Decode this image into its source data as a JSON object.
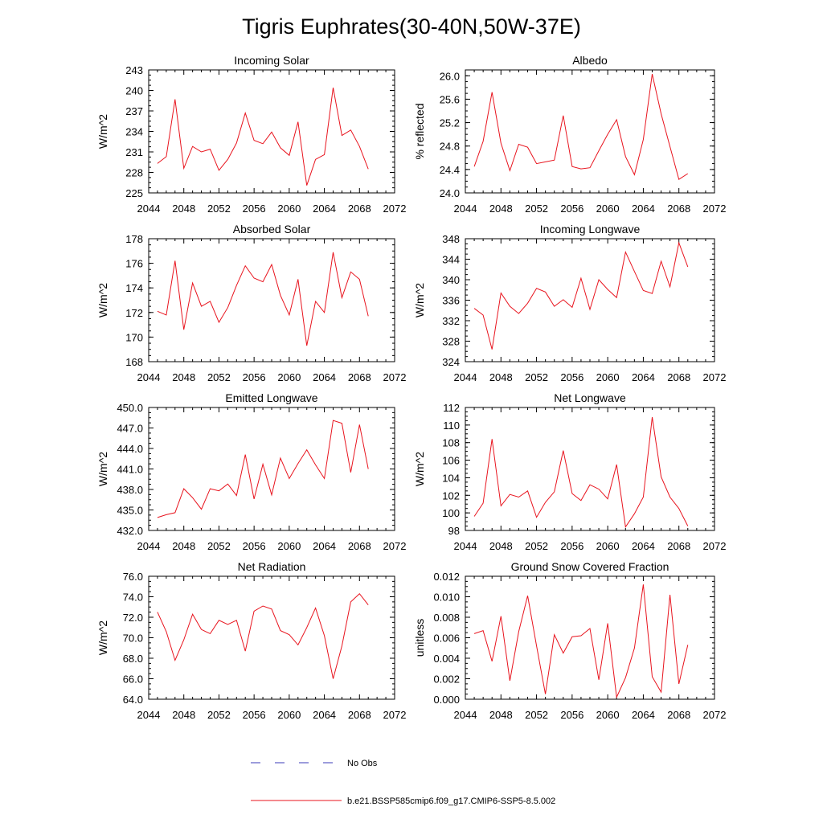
{
  "figure": {
    "title": "Tigris Euphrates(30-40N,50W-37E)",
    "legend": [
      {
        "label": "No Obs",
        "color": "#3b3bb8",
        "dash": true
      },
      {
        "label": "b.e21.BSSP585cmip6.f09_g17.CMIP6-SSP5-8.5.002",
        "color": "#e8141e",
        "dash": false
      }
    ]
  },
  "chart_data": [
    {
      "type": "line",
      "title": "Incoming Solar",
      "ylabel": "W/m^2",
      "xlim": [
        2044,
        2072
      ],
      "xticks": [
        "2044",
        "2048",
        "2052",
        "2056",
        "2060",
        "2064",
        "2068",
        "2072"
      ],
      "ylim": [
        225,
        243
      ],
      "yticks": [
        "225",
        "228",
        "231",
        "234",
        "237",
        "240",
        "243"
      ],
      "series": [
        {
          "color": "#e8141e",
          "x": [
            2045,
            2046,
            2047,
            2048,
            2049,
            2050,
            2051,
            2052,
            2053,
            2054,
            2055,
            2056,
            2057,
            2058,
            2059,
            2060,
            2061,
            2062,
            2063,
            2064,
            2065,
            2066,
            2067,
            2068,
            2069
          ],
          "values": [
            229.3,
            230.3,
            238.7,
            228.6,
            231.8,
            231.0,
            231.4,
            228.3,
            229.9,
            232.3,
            236.7,
            232.7,
            232.2,
            233.9,
            231.6,
            230.5,
            235.4,
            226.1,
            229.9,
            230.6,
            240.4,
            233.4,
            234.2,
            231.8,
            228.5
          ]
        }
      ]
    },
    {
      "type": "line",
      "title": "Albedo",
      "ylabel": "% reflected",
      "xlim": [
        2044,
        2072
      ],
      "xticks": [
        "2044",
        "2048",
        "2052",
        "2056",
        "2060",
        "2064",
        "2068",
        "2072"
      ],
      "ylim": [
        24.0,
        26.1
      ],
      "yticks": [
        "24.0",
        "24.4",
        "24.8",
        "25.2",
        "25.6",
        "26.0"
      ],
      "series": [
        {
          "color": "#e8141e",
          "x": [
            2045,
            2046,
            2047,
            2048,
            2049,
            2050,
            2051,
            2052,
            2053,
            2054,
            2055,
            2056,
            2057,
            2058,
            2059,
            2060,
            2061,
            2062,
            2063,
            2064,
            2065,
            2066,
            2067,
            2068,
            2069
          ],
          "values": [
            24.45,
            24.88,
            25.72,
            24.85,
            24.38,
            24.83,
            24.78,
            24.5,
            24.53,
            24.56,
            25.32,
            24.45,
            24.41,
            24.43,
            24.72,
            25.0,
            25.25,
            24.62,
            24.31,
            24.91,
            26.03,
            25.35,
            24.79,
            24.23,
            24.33
          ]
        }
      ]
    },
    {
      "type": "line",
      "title": "Absorbed Solar",
      "ylabel": "W/m^2",
      "xlim": [
        2044,
        2072
      ],
      "xticks": [
        "2044",
        "2048",
        "2052",
        "2056",
        "2060",
        "2064",
        "2068",
        "2072"
      ],
      "ylim": [
        168,
        178
      ],
      "yticks": [
        "168",
        "170",
        "172",
        "174",
        "176",
        "178"
      ],
      "series": [
        {
          "color": "#e8141e",
          "x": [
            2045,
            2046,
            2047,
            2048,
            2049,
            2050,
            2051,
            2052,
            2053,
            2054,
            2055,
            2056,
            2057,
            2058,
            2059,
            2060,
            2061,
            2062,
            2063,
            2064,
            2065,
            2066,
            2067,
            2068,
            2069
          ],
          "values": [
            172.1,
            171.8,
            176.2,
            170.6,
            174.4,
            172.5,
            172.9,
            171.2,
            172.4,
            174.2,
            175.8,
            174.8,
            174.5,
            175.9,
            173.4,
            171.8,
            174.7,
            169.3,
            172.9,
            172.0,
            176.9,
            173.2,
            175.3,
            174.7,
            171.7
          ]
        }
      ]
    },
    {
      "type": "line",
      "title": "Incoming Longwave",
      "ylabel": "W/m^2",
      "xlim": [
        2044,
        2072
      ],
      "xticks": [
        "2044",
        "2048",
        "2052",
        "2056",
        "2060",
        "2064",
        "2068",
        "2072"
      ],
      "ylim": [
        324,
        348
      ],
      "yticks": [
        "324",
        "328",
        "332",
        "336",
        "340",
        "344",
        "348"
      ],
      "series": [
        {
          "color": "#e8141e",
          "x": [
            2045,
            2046,
            2047,
            2048,
            2049,
            2050,
            2051,
            2052,
            2053,
            2054,
            2055,
            2056,
            2057,
            2058,
            2059,
            2060,
            2061,
            2062,
            2063,
            2064,
            2065,
            2066,
            2067,
            2068,
            2069
          ],
          "values": [
            334.4,
            333.1,
            326.4,
            337.4,
            334.8,
            333.4,
            335.4,
            338.3,
            337.6,
            334.8,
            336.1,
            334.6,
            340.3,
            334.2,
            340.0,
            338.1,
            336.5,
            345.4,
            341.6,
            337.9,
            337.3,
            343.6,
            338.6,
            347.2,
            342.5
          ]
        }
      ]
    },
    {
      "type": "line",
      "title": "Emitted Longwave",
      "ylabel": "W/m^2",
      "xlim": [
        2044,
        2072
      ],
      "xticks": [
        "2044",
        "2048",
        "2052",
        "2056",
        "2060",
        "2064",
        "2068",
        "2072"
      ],
      "ylim": [
        432.0,
        450.0
      ],
      "yticks": [
        "432.0",
        "435.0",
        "438.0",
        "441.0",
        "444.0",
        "447.0",
        "450.0"
      ],
      "series": [
        {
          "color": "#e8141e",
          "x": [
            2045,
            2046,
            2047,
            2048,
            2049,
            2050,
            2051,
            2052,
            2053,
            2054,
            2055,
            2056,
            2057,
            2058,
            2059,
            2060,
            2061,
            2062,
            2063,
            2064,
            2065,
            2066,
            2067,
            2068,
            2069
          ],
          "values": [
            433.9,
            434.3,
            434.6,
            438.1,
            436.8,
            435.1,
            438.1,
            437.8,
            438.8,
            437.1,
            443.1,
            436.6,
            441.7,
            437.2,
            442.6,
            439.6,
            441.8,
            443.8,
            441.6,
            439.6,
            448.1,
            447.7,
            440.5,
            447.5,
            441.0
          ]
        }
      ]
    },
    {
      "type": "line",
      "title": "Net Longwave",
      "ylabel": "W/m^2",
      "xlim": [
        2044,
        2072
      ],
      "xticks": [
        "2044",
        "2048",
        "2052",
        "2056",
        "2060",
        "2064",
        "2068",
        "2072"
      ],
      "ylim": [
        98,
        112
      ],
      "yticks": [
        "98",
        "100",
        "102",
        "104",
        "106",
        "108",
        "110",
        "112"
      ],
      "series": [
        {
          "color": "#e8141e",
          "x": [
            2045,
            2046,
            2047,
            2048,
            2049,
            2050,
            2051,
            2052,
            2053,
            2054,
            2055,
            2056,
            2057,
            2058,
            2059,
            2060,
            2061,
            2062,
            2063,
            2064,
            2065,
            2066,
            2067,
            2068,
            2069
          ],
          "values": [
            99.6,
            101.1,
            108.4,
            100.8,
            102.1,
            101.8,
            102.5,
            99.5,
            101.2,
            102.4,
            107.1,
            102.2,
            101.4,
            103.2,
            102.7,
            101.6,
            105.5,
            98.4,
            99.9,
            101.8,
            110.9,
            104.1,
            101.8,
            100.5,
            98.5
          ]
        }
      ]
    },
    {
      "type": "line",
      "title": "Net Radiation",
      "ylabel": "W/m^2",
      "xlim": [
        2044,
        2072
      ],
      "xticks": [
        "2044",
        "2048",
        "2052",
        "2056",
        "2060",
        "2064",
        "2068",
        "2072"
      ],
      "ylim": [
        64.0,
        76.0
      ],
      "yticks": [
        "64.0",
        "66.0",
        "68.0",
        "70.0",
        "72.0",
        "74.0",
        "76.0"
      ],
      "series": [
        {
          "color": "#e8141e",
          "x": [
            2045,
            2046,
            2047,
            2048,
            2049,
            2050,
            2051,
            2052,
            2053,
            2054,
            2055,
            2056,
            2057,
            2058,
            2059,
            2060,
            2061,
            2062,
            2063,
            2064,
            2065,
            2066,
            2067,
            2068,
            2069
          ],
          "values": [
            72.5,
            70.6,
            67.8,
            69.8,
            72.3,
            70.8,
            70.4,
            71.7,
            71.3,
            71.7,
            68.7,
            72.6,
            73.1,
            72.8,
            70.7,
            70.3,
            69.3,
            71.0,
            72.9,
            70.2,
            66.0,
            69.2,
            73.5,
            74.3,
            73.2
          ]
        }
      ]
    },
    {
      "type": "line",
      "title": "Ground Snow Covered Fraction",
      "ylabel": "unitless",
      "xlim": [
        2044,
        2072
      ],
      "xticks": [
        "2044",
        "2048",
        "2052",
        "2056",
        "2060",
        "2064",
        "2068",
        "2072"
      ],
      "ylim": [
        0.0,
        0.012
      ],
      "yticks": [
        "0.000",
        "0.002",
        "0.004",
        "0.006",
        "0.008",
        "0.010",
        "0.012"
      ],
      "series": [
        {
          "color": "#e8141e",
          "x": [
            2045,
            2046,
            2047,
            2048,
            2049,
            2050,
            2051,
            2052,
            2053,
            2054,
            2055,
            2056,
            2057,
            2058,
            2059,
            2060,
            2061,
            2062,
            2063,
            2064,
            2065,
            2066,
            2067,
            2068,
            2069
          ],
          "values": [
            0.0064,
            0.0067,
            0.0037,
            0.0081,
            0.0018,
            0.0066,
            0.0101,
            0.0052,
            0.0005,
            0.0063,
            0.0045,
            0.0061,
            0.0062,
            0.0069,
            0.0019,
            0.0074,
            0.0002,
            0.0021,
            0.005,
            0.0112,
            0.0022,
            0.0007,
            0.0102,
            0.0015,
            0.0053
          ]
        }
      ]
    }
  ]
}
